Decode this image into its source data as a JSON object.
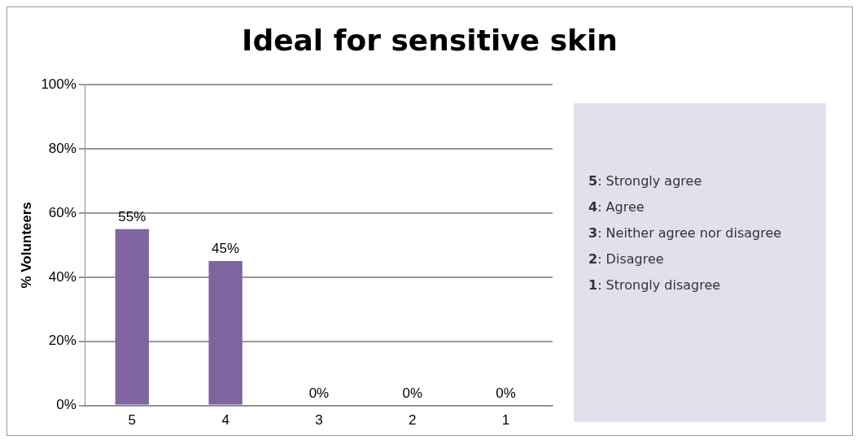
{
  "chart_data": {
    "type": "bar",
    "title": "Ideal for sensitive skin",
    "ylabel": "% Volunteers",
    "categories": [
      "5",
      "4",
      "3",
      "2",
      "1"
    ],
    "values": [
      55,
      45,
      0,
      0,
      0
    ],
    "value_labels": [
      "55%",
      "45%",
      "0%",
      "0%",
      "0%"
    ],
    "color": "#8064a2",
    "ylim": [
      0,
      100
    ],
    "yticks": [
      {
        "value": 0,
        "label": "0%"
      },
      {
        "value": 20,
        "label": "20%"
      },
      {
        "value": 40,
        "label": "40%"
      },
      {
        "value": 60,
        "label": "60%"
      },
      {
        "value": 80,
        "label": "80%"
      },
      {
        "value": 100,
        "label": "100%"
      }
    ],
    "grid": "y",
    "legend": false,
    "annotations": [
      "5: Strongly agree",
      "4: Agree",
      "3: Neither agree nor disagree",
      "2: Disagree",
      "1: Strongly disagree"
    ]
  }
}
